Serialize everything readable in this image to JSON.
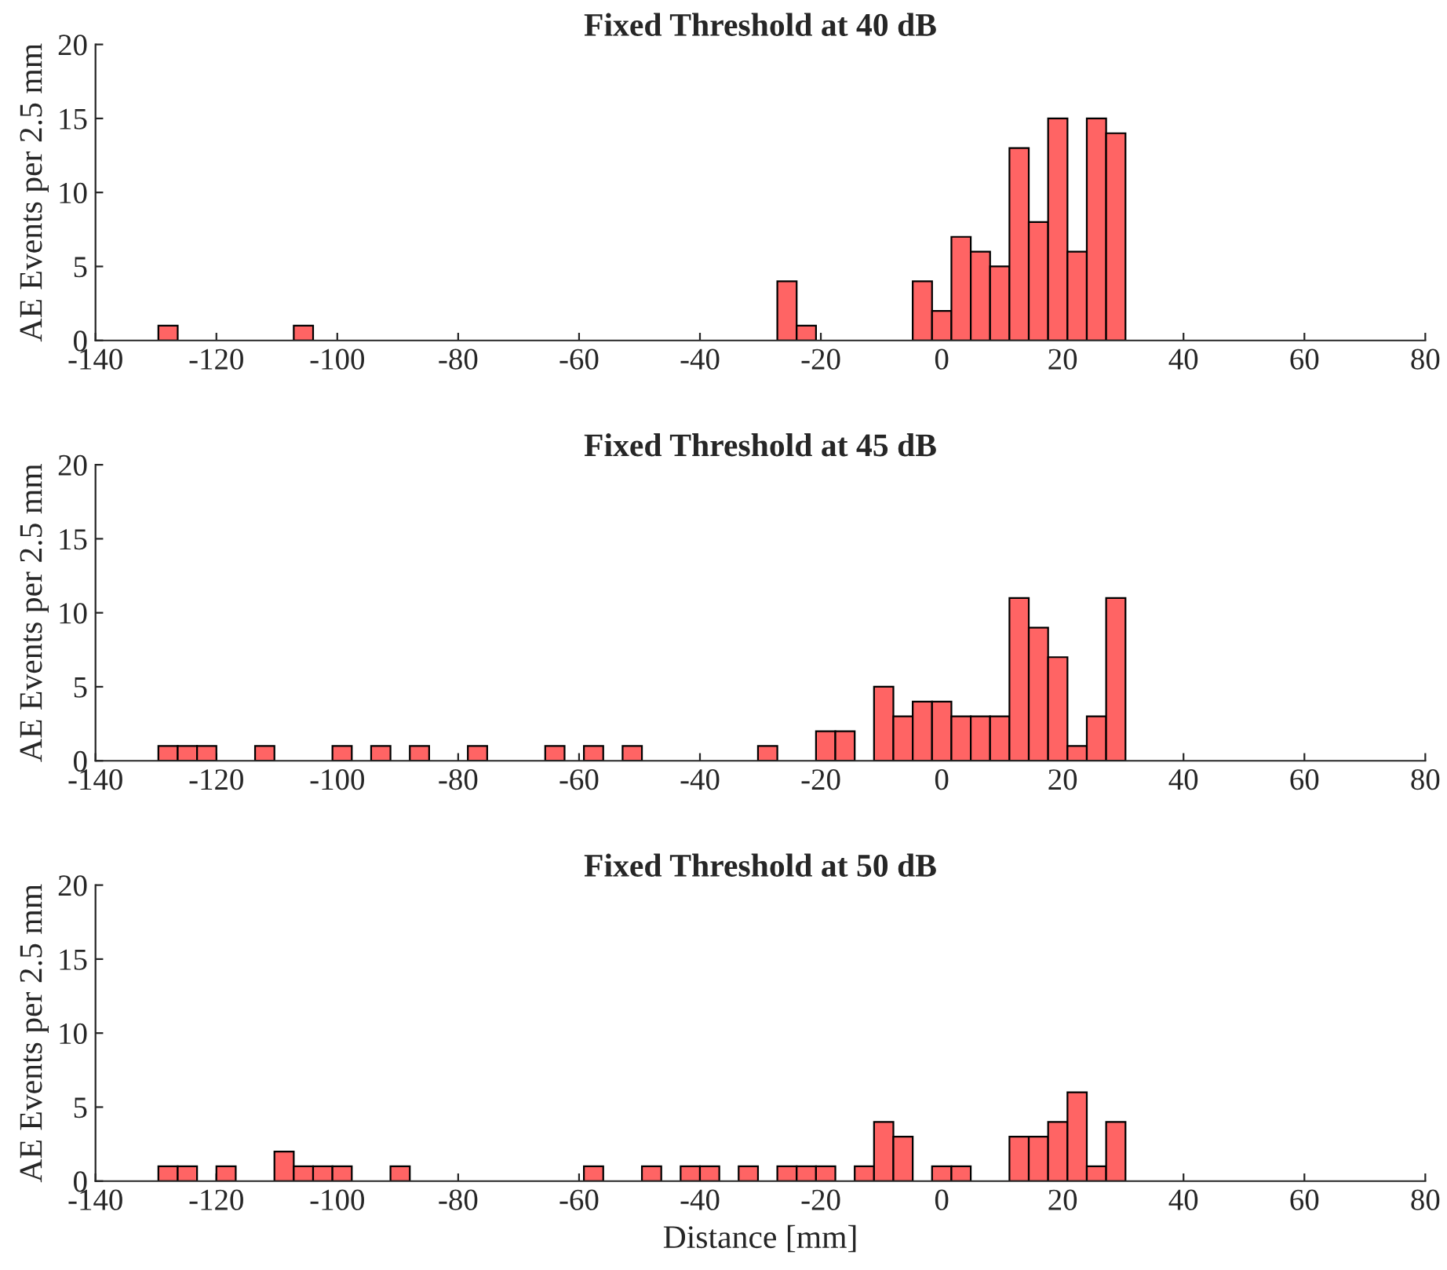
{
  "chart_data": [
    {
      "type": "histogram",
      "title": "Fixed Threshold at 40 dB",
      "ylabel": "AE Events per 2.5 mm",
      "color": "#ff6464",
      "bins": [
        -129.6,
        -126.4,
        -123.2,
        -120.0,
        -116.8,
        -113.6,
        -110.4,
        -107.2,
        -104.0,
        -100.8,
        -97.6,
        -94.4,
        -91.2,
        -88.0,
        -84.8,
        -81.6,
        -78.4,
        -75.2,
        -72.0,
        -68.8,
        -65.6,
        -62.4,
        -59.2,
        -56.0,
        -52.8,
        -49.6,
        -46.4,
        -43.2,
        -40.0,
        -36.8,
        -33.6,
        -30.4,
        -27.2,
        -24.0,
        -20.8,
        -17.6,
        -14.4,
        -11.2,
        -8.0,
        -4.8,
        -1.6,
        1.6,
        4.8,
        8.0,
        11.2,
        14.4,
        17.6,
        20.8,
        24.0,
        27.2,
        30.4
      ],
      "values": [
        1,
        0,
        0,
        0,
        0,
        0,
        0,
        1,
        0,
        0,
        0,
        0,
        0,
        0,
        0,
        0,
        0,
        0,
        0,
        0,
        0,
        0,
        0,
        0,
        0,
        0,
        0,
        0,
        0,
        0,
        0,
        0,
        4,
        1,
        0,
        0,
        0,
        0,
        0,
        4,
        2,
        7,
        6,
        5,
        13,
        8,
        15,
        6,
        15,
        14
      ],
      "xlim": [
        -140,
        80
      ],
      "xticks": [
        -140,
        -120,
        -100,
        -80,
        -60,
        -40,
        -20,
        0,
        20,
        40,
        60,
        80
      ],
      "ylim": [
        0,
        20
      ],
      "yticks": [
        0,
        5,
        10,
        15,
        20
      ],
      "grid": false
    },
    {
      "type": "histogram",
      "title": "Fixed Threshold at 45 dB",
      "ylabel": "AE Events per 2.5 mm",
      "color": "#ff6464",
      "bins": [
        -129.6,
        -126.4,
        -123.2,
        -120.0,
        -116.8,
        -113.6,
        -110.4,
        -107.2,
        -104.0,
        -100.8,
        -97.6,
        -94.4,
        -91.2,
        -88.0,
        -84.8,
        -81.6,
        -78.4,
        -75.2,
        -72.0,
        -68.8,
        -65.6,
        -62.4,
        -59.2,
        -56.0,
        -52.8,
        -49.6,
        -46.4,
        -43.2,
        -40.0,
        -36.8,
        -33.6,
        -30.4,
        -27.2,
        -24.0,
        -20.8,
        -17.6,
        -14.4,
        -11.2,
        -8.0,
        -4.8,
        -1.6,
        1.6,
        4.8,
        8.0,
        11.2,
        14.4,
        17.6,
        20.8,
        24.0,
        27.2,
        30.4
      ],
      "values": [
        1,
        1,
        1,
        0,
        0,
        1,
        0,
        0,
        0,
        1,
        0,
        1,
        0,
        1,
        0,
        0,
        1,
        0,
        0,
        0,
        1,
        0,
        1,
        0,
        1,
        0,
        0,
        0,
        0,
        0,
        0,
        1,
        0,
        0,
        2,
        2,
        0,
        5,
        3,
        4,
        4,
        3,
        3,
        3,
        11,
        9,
        7,
        1,
        3,
        11
      ],
      "xlim": [
        -140,
        80
      ],
      "xticks": [
        -140,
        -120,
        -100,
        -80,
        -60,
        -40,
        -20,
        0,
        20,
        40,
        60,
        80
      ],
      "ylim": [
        0,
        20
      ],
      "yticks": [
        0,
        5,
        10,
        15,
        20
      ],
      "grid": false
    },
    {
      "type": "histogram",
      "title": "Fixed Threshold at 50 dB",
      "ylabel": "AE Events per 2.5 mm",
      "xlabel": "Distance [mm]",
      "color": "#ff6464",
      "bins": [
        -129.6,
        -126.4,
        -123.2,
        -120.0,
        -116.8,
        -113.6,
        -110.4,
        -107.2,
        -104.0,
        -100.8,
        -97.6,
        -94.4,
        -91.2,
        -88.0,
        -84.8,
        -81.6,
        -78.4,
        -75.2,
        -72.0,
        -68.8,
        -65.6,
        -62.4,
        -59.2,
        -56.0,
        -52.8,
        -49.6,
        -46.4,
        -43.2,
        -40.0,
        -36.8,
        -33.6,
        -30.4,
        -27.2,
        -24.0,
        -20.8,
        -17.6,
        -14.4,
        -11.2,
        -8.0,
        -4.8,
        -1.6,
        1.6,
        4.8,
        8.0,
        11.2,
        14.4,
        17.6,
        20.8,
        24.0,
        27.2,
        30.4
      ],
      "values": [
        1,
        1,
        0,
        1,
        0,
        0,
        2,
        1,
        1,
        1,
        0,
        0,
        1,
        0,
        0,
        0,
        0,
        0,
        0,
        0,
        0,
        0,
        1,
        0,
        0,
        1,
        0,
        1,
        1,
        0,
        1,
        0,
        1,
        1,
        1,
        0,
        1,
        4,
        3,
        0,
        1,
        1,
        0,
        0,
        3,
        3,
        4,
        6,
        1,
        4
      ],
      "xlim": [
        -140,
        80
      ],
      "xticks": [
        -140,
        -120,
        -100,
        -80,
        -60,
        -40,
        -20,
        0,
        20,
        40,
        60,
        80
      ],
      "ylim": [
        0,
        20
      ],
      "yticks": [
        0,
        5,
        10,
        15,
        20
      ],
      "grid": false
    }
  ]
}
